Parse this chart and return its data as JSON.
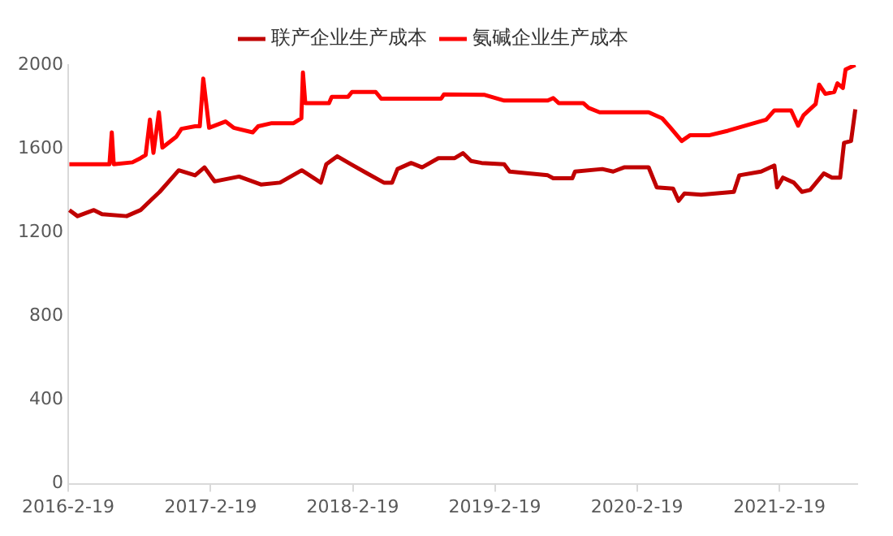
{
  "chart_data": {
    "type": "line",
    "legend": "top",
    "grid": false,
    "marker": "none",
    "line_style": "solid",
    "xlim": [
      "2016-02-19",
      "2021-09-07"
    ],
    "xticks": [
      {
        "value": "2016-02-19",
        "label": "2016-2-19"
      },
      {
        "value": "2017-02-19",
        "label": "2017-2-19"
      },
      {
        "value": "2018-02-19",
        "label": "2018-2-19"
      },
      {
        "value": "2019-02-19",
        "label": "2019-2-19"
      },
      {
        "value": "2020-02-19",
        "label": "2020-2-19"
      },
      {
        "value": "2021-02-19",
        "label": "2021-2-19"
      }
    ],
    "ylim": [
      0,
      2000
    ],
    "yticks": [
      0,
      400,
      800,
      1200,
      1600,
      2000
    ],
    "series": [
      {
        "name": "联产企业生产成本",
        "color": "#c00000",
        "x": [
          "2016-02-22",
          "2016-03-14",
          "2016-04-25",
          "2016-05-16",
          "2016-07-18",
          "2016-08-23",
          "2016-09-20",
          "2016-10-11",
          "2016-11-01",
          "2016-11-29",
          "2017-01-10",
          "2017-02-03",
          "2017-03-01",
          "2017-05-03",
          "2017-06-28",
          "2017-08-16",
          "2017-10-11",
          "2017-11-29",
          "2017-12-13",
          "2018-01-10",
          "2018-02-14",
          "2018-03-28",
          "2018-05-10",
          "2018-05-31",
          "2018-06-14",
          "2018-07-19",
          "2018-08-16",
          "2018-09-27",
          "2018-11-08",
          "2018-11-29",
          "2018-12-20",
          "2019-01-16",
          "2019-03-15",
          "2019-03-29",
          "2019-07-05",
          "2019-07-19",
          "2019-09-06",
          "2019-09-13",
          "2019-11-22",
          "2019-12-20",
          "2020-01-17",
          "2020-03-20",
          "2020-04-10",
          "2020-05-22",
          "2020-06-05",
          "2020-06-20",
          "2020-08-02",
          "2020-10-25",
          "2020-11-08",
          "2021-01-03",
          "2021-02-06",
          "2021-02-13",
          "2021-02-28",
          "2021-03-28",
          "2021-04-18",
          "2021-05-09",
          "2021-06-13",
          "2021-07-04",
          "2021-07-25",
          "2021-08-04",
          "2021-08-22",
          "2021-09-02"
        ],
        "values": [
          1307,
          1278,
          1307,
          1287,
          1278,
          1307,
          1357,
          1394,
          1438,
          1497,
          1473,
          1511,
          1444,
          1467,
          1429,
          1438,
          1497,
          1438,
          1526,
          1564,
          1526,
          1482,
          1438,
          1438,
          1503,
          1532,
          1511,
          1555,
          1555,
          1579,
          1541,
          1532,
          1526,
          1491,
          1473,
          1459,
          1459,
          1491,
          1503,
          1491,
          1511,
          1511,
          1415,
          1409,
          1351,
          1386,
          1380,
          1394,
          1473,
          1491,
          1520,
          1415,
          1462,
          1438,
          1394,
          1403,
          1482,
          1462,
          1462,
          1628,
          1637,
          1788
        ]
      },
      {
        "name": "氨碱企业生产成本",
        "color": "#ff0000",
        "x": [
          "2016-02-22",
          "2016-06-04",
          "2016-06-10",
          "2016-06-15",
          "2016-08-02",
          "2016-08-23",
          "2016-09-05",
          "2016-09-16",
          "2016-09-25",
          "2016-10-09",
          "2016-10-18",
          "2016-11-23",
          "2016-12-06",
          "2017-01-10",
          "2017-01-22",
          "2017-01-31",
          "2017-02-15",
          "2017-03-29",
          "2017-04-19",
          "2017-06-07",
          "2017-06-21",
          "2017-07-26",
          "2017-09-20",
          "2017-10-10",
          "2017-10-14",
          "2017-10-20",
          "2017-12-20",
          "2017-12-27",
          "2018-02-07",
          "2018-02-17",
          "2018-04-19",
          "2018-05-03",
          "2018-10-04",
          "2018-10-11",
          "2019-01-24",
          "2019-03-15",
          "2019-07-05",
          "2019-07-19",
          "2019-08-02",
          "2019-10-04",
          "2019-10-18",
          "2019-11-15",
          "2020-03-20",
          "2020-04-24",
          "2020-05-15",
          "2020-06-13",
          "2020-07-04",
          "2020-08-22",
          "2020-10-10",
          "2020-12-05",
          "2021-01-16",
          "2021-02-06",
          "2021-03-21",
          "2021-04-08",
          "2021-04-22",
          "2021-05-23",
          "2021-06-01",
          "2021-06-17",
          "2021-07-10",
          "2021-07-18",
          "2021-08-01",
          "2021-08-08",
          "2021-09-02"
        ],
        "values": [
          1526,
          1526,
          1678,
          1526,
          1535,
          1555,
          1570,
          1739,
          1580,
          1774,
          1605,
          1658,
          1695,
          1707,
          1707,
          1935,
          1700,
          1730,
          1700,
          1678,
          1707,
          1722,
          1722,
          1745,
          1964,
          1818,
          1818,
          1848,
          1848,
          1871,
          1871,
          1839,
          1839,
          1859,
          1857,
          1830,
          1830,
          1842,
          1818,
          1818,
          1795,
          1774,
          1774,
          1745,
          1701,
          1637,
          1664,
          1664,
          1686,
          1716,
          1739,
          1783,
          1783,
          1710,
          1760,
          1813,
          1906,
          1862,
          1871,
          1912,
          1890,
          1979,
          2000
        ]
      }
    ]
  }
}
